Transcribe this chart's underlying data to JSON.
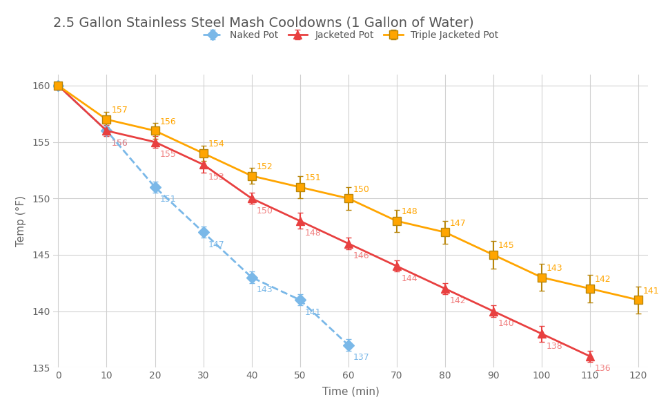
{
  "title": "2.5 Gallon Stainless Steel Mash Cooldowns (1 Gallon of Water)",
  "xlabel": "Time (min)",
  "ylabel": "Temp (°F)",
  "background_color": "#ffffff",
  "grid_color": "#d0d0d0",
  "xlim": [
    -1,
    122
  ],
  "ylim": [
    135,
    161
  ],
  "yticks": [
    135,
    140,
    145,
    150,
    155,
    160
  ],
  "xticks": [
    0,
    10,
    20,
    30,
    40,
    50,
    60,
    70,
    80,
    90,
    100,
    110,
    120
  ],
  "naked_pot": {
    "label": "Naked Pot",
    "color": "#7ab8e8",
    "x": [
      0,
      10,
      20,
      30,
      40,
      50,
      60
    ],
    "y": [
      160,
      156,
      151,
      147,
      143,
      141,
      137
    ],
    "yerr": [
      0,
      0.5,
      0.5,
      0.5,
      0.5,
      0.5,
      0.5
    ],
    "marker": "D",
    "linestyle": "--"
  },
  "jacketed_pot": {
    "label": "Jacketed Pot",
    "color": "#e84040",
    "label_color": "#f08080",
    "x": [
      0,
      10,
      20,
      30,
      40,
      50,
      60,
      70,
      80,
      90,
      100,
      110
    ],
    "y": [
      160,
      156,
      155,
      153,
      150,
      148,
      146,
      144,
      142,
      140,
      138,
      136
    ],
    "yerr": [
      0,
      0.5,
      0.5,
      0.7,
      0.5,
      0.7,
      0.5,
      0.5,
      0.5,
      0.5,
      0.7,
      0.5
    ],
    "marker": "^",
    "linestyle": "-"
  },
  "triple_jacketed_pot": {
    "label": "Triple Jacketed Pot",
    "color": "#FFA500",
    "marker_edge_color": "#b8860b",
    "x": [
      0,
      10,
      20,
      30,
      40,
      50,
      60,
      70,
      80,
      90,
      100,
      110,
      120
    ],
    "y": [
      160,
      157,
      156,
      154,
      152,
      151,
      150,
      148,
      147,
      145,
      143,
      142,
      141
    ],
    "yerr": [
      0,
      0.7,
      0.7,
      0.7,
      0.7,
      1.0,
      1.0,
      1.0,
      1.0,
      1.2,
      1.2,
      1.2,
      1.2
    ],
    "marker": "s",
    "linestyle": "-"
  },
  "title_fontsize": 14,
  "axis_label_fontsize": 11,
  "tick_fontsize": 10,
  "data_label_fontsize": 9
}
